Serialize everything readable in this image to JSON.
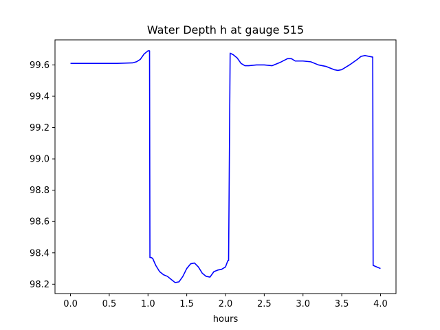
{
  "chart_data": {
    "type": "line",
    "title": "Water Depth h at gauge 515",
    "xlabel": "hours",
    "ylabel": "",
    "xlim": [
      -0.2,
      4.2
    ],
    "ylim": [
      98.14,
      99.76
    ],
    "xticks": [
      0.0,
      0.5,
      1.0,
      1.5,
      2.0,
      2.5,
      3.0,
      3.5,
      4.0
    ],
    "xtick_labels": [
      "0.0",
      "0.5",
      "1.0",
      "1.5",
      "2.0",
      "2.5",
      "3.0",
      "3.5",
      "4.0"
    ],
    "yticks": [
      98.2,
      98.4,
      98.6,
      98.8,
      99.0,
      99.2,
      99.4,
      99.6
    ],
    "ytick_labels": [
      "98.2",
      "98.4",
      "98.6",
      "98.8",
      "99.0",
      "99.2",
      "99.4",
      "99.6"
    ],
    "grid": false,
    "series": [
      {
        "color": "#0000ff",
        "x": [
          0.0,
          0.2,
          0.4,
          0.6,
          0.8,
          0.85,
          0.9,
          0.95,
          1.0,
          1.02,
          1.025,
          1.04,
          1.06,
          1.1,
          1.15,
          1.2,
          1.25,
          1.3,
          1.35,
          1.4,
          1.45,
          1.5,
          1.55,
          1.6,
          1.65,
          1.7,
          1.75,
          1.8,
          1.85,
          1.9,
          1.95,
          2.0,
          2.03,
          2.04,
          2.06,
          2.08,
          2.1,
          2.15,
          2.2,
          2.25,
          2.3,
          2.4,
          2.5,
          2.6,
          2.7,
          2.8,
          2.85,
          2.9,
          3.0,
          3.1,
          3.2,
          3.3,
          3.4,
          3.45,
          3.5,
          3.6,
          3.7,
          3.75,
          3.8,
          3.85,
          3.9,
          3.905,
          3.95,
          4.0
        ],
        "y": [
          99.61,
          99.61,
          99.61,
          99.61,
          99.613,
          99.62,
          99.635,
          99.67,
          99.69,
          99.69,
          98.37,
          98.37,
          98.365,
          98.32,
          98.28,
          98.26,
          98.25,
          98.23,
          98.21,
          98.215,
          98.25,
          98.3,
          98.33,
          98.335,
          98.31,
          98.27,
          98.25,
          98.245,
          98.28,
          98.29,
          98.295,
          98.31,
          98.35,
          98.35,
          99.675,
          99.67,
          99.665,
          99.645,
          99.61,
          99.595,
          99.595,
          99.6,
          99.6,
          99.595,
          99.615,
          99.64,
          99.64,
          99.625,
          99.625,
          99.62,
          99.6,
          99.59,
          99.57,
          99.565,
          99.57,
          99.6,
          99.635,
          99.655,
          99.66,
          99.655,
          99.65,
          98.32,
          98.31,
          98.3
        ]
      }
    ]
  }
}
